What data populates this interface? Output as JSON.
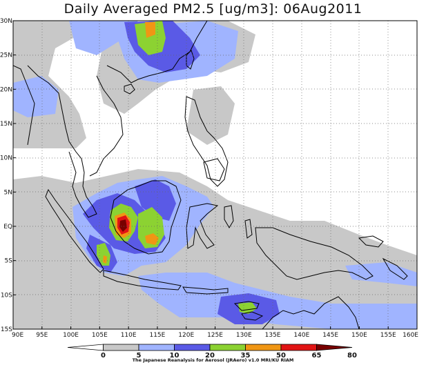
{
  "title": "Daily Averaged PM2.5 [ug/m3]: 06Aug2011",
  "credit": "The Japanese Reanalysis for Aerosol (JRAero) v1.0 MRI/KU RIAM",
  "map": {
    "lon_range": [
      90,
      160
    ],
    "lat_range": [
      -15,
      30
    ],
    "lon_ticks": [
      "90E",
      "95E",
      "100E",
      "105E",
      "110E",
      "115E",
      "120E",
      "125E",
      "130E",
      "135E",
      "140E",
      "145E",
      "150E",
      "155E",
      "160E"
    ],
    "lat_ticks": [
      "30N",
      "25N",
      "20N",
      "15N",
      "10N",
      "5N",
      "EQ",
      "5S",
      "10S",
      "15S"
    ],
    "gridlines": "dotted",
    "coastline_color": "#000000"
  },
  "colorbar": {
    "labels": [
      "0",
      "5",
      "10",
      "20",
      "35",
      "50",
      "65",
      "80"
    ],
    "colors": [
      "#ffffff",
      "#c8c8c8",
      "#a0b4ff",
      "#5a5ae6",
      "#8cd232",
      "#f09614",
      "#e11414",
      "#780000"
    ]
  }
}
